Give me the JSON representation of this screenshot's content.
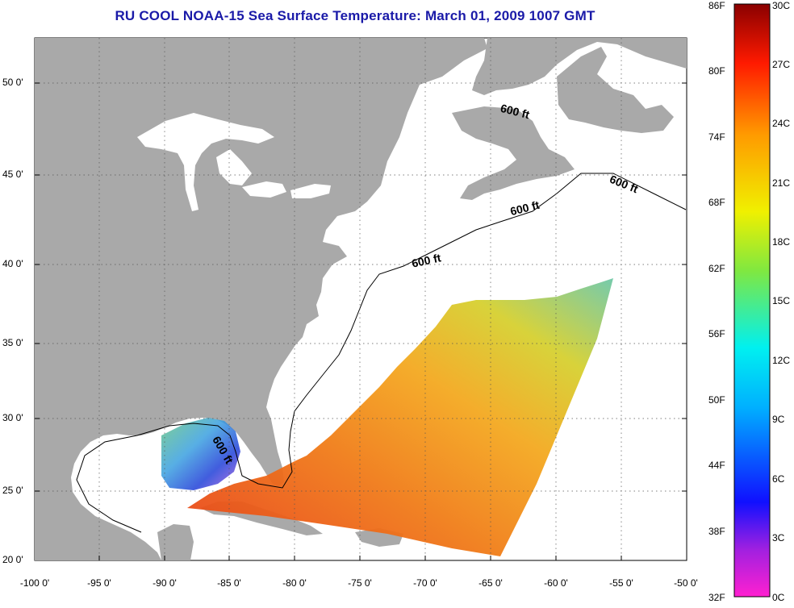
{
  "title": "RU COOL  NOAA-15  Sea Surface Temperature:  March 01, 2009 1007 GMT",
  "map": {
    "lat_ticks": [
      "50 0'",
      "45 0'",
      "40 0'",
      "35 0'",
      "30 0'",
      "25 0'",
      "20 0'"
    ],
    "lon_ticks": [
      "-100 0'",
      "-95 0'",
      "-90 0'",
      "-85 0'",
      "-80 0'",
      "-75 0'",
      "-70 0'",
      "-65 0'",
      "-60 0'",
      "-55 0'",
      "-50 0'"
    ],
    "contour_labels": [
      "600 ft",
      "600 ft",
      "600 ft",
      "600 ft",
      "600 ft"
    ],
    "colors": {
      "land": "#a9a9a9",
      "water": "#ffffff",
      "grid": "#555555"
    }
  },
  "colorbar": {
    "fahrenheit_labels": [
      "86F",
      "80F",
      "74F",
      "68F",
      "62F",
      "56F",
      "50F",
      "44F",
      "38F",
      "32F"
    ],
    "celsius_labels": [
      "30C",
      "27C",
      "24C",
      "21C",
      "18C",
      "15C",
      "12C",
      "9C",
      "6C",
      "3C",
      "0C"
    ]
  }
}
